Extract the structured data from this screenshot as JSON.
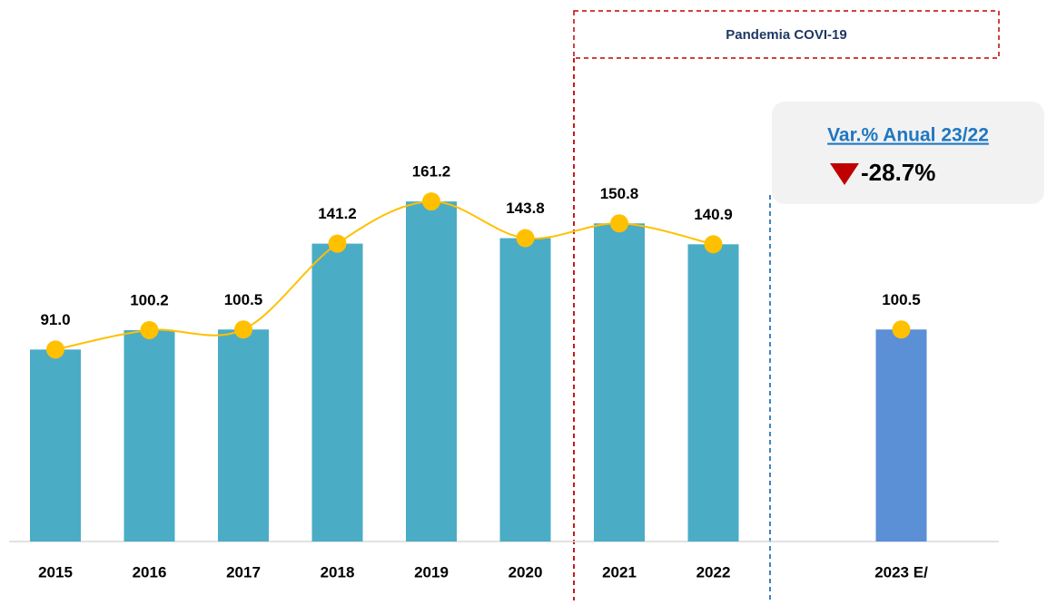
{
  "chart_data": {
    "type": "bar",
    "categories": [
      "2015",
      "2016",
      "2017",
      "2018",
      "2019",
      "2020",
      "2021",
      "2022"
    ],
    "values": [
      91.0,
      100.2,
      100.5,
      141.2,
      161.2,
      143.8,
      150.8,
      140.9
    ],
    "value_labels": [
      "91.0",
      "100.2",
      "100.5",
      "141.2",
      "161.2",
      "143.8",
      "150.8",
      "140.9"
    ],
    "color": "#4bacc6",
    "line_color": "#ffc000",
    "estimate": {
      "category": "2023 E/",
      "value": 100.5,
      "value_label": "100.5",
      "color": "#5b8fd6"
    },
    "ylim": [
      0,
      175
    ],
    "annotations": {
      "pandemic": "Pandemia COVI-19",
      "change_title": "Var.% Anual 23/22",
      "change_value": "-28.7%"
    }
  }
}
